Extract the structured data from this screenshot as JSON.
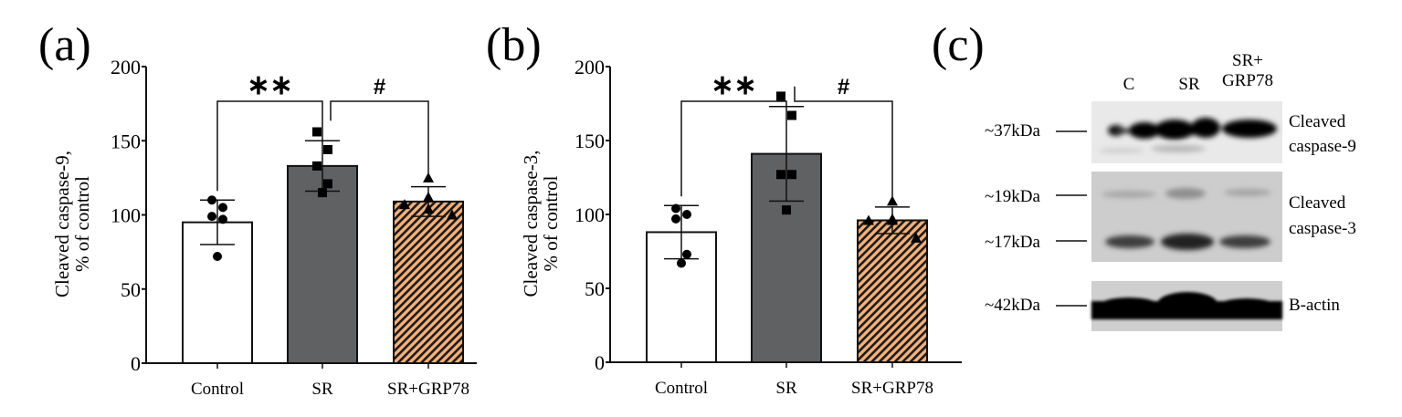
{
  "panels": {
    "a": {
      "letter": "(a)"
    },
    "b": {
      "letter": "(b)"
    },
    "c": {
      "letter": "(c)"
    }
  },
  "chart_data": [
    {
      "id": "a",
      "type": "bar",
      "title": "",
      "xlabel": "",
      "ylabel_line1": "Cleaved caspase-9,",
      "ylabel_line2": "% of control",
      "ylim": [
        0,
        200
      ],
      "yticks": [
        0,
        50,
        100,
        150,
        200
      ],
      "grid": false,
      "categories": [
        "Control",
        "SR",
        "SR+GRP78"
      ],
      "values": [
        95,
        133,
        109
      ],
      "errors": [
        15,
        17,
        10
      ],
      "points": [
        [
          110,
          105,
          99,
          97,
          72
        ],
        [
          156,
          144,
          133,
          121,
          115
        ],
        [
          125,
          112,
          107,
          104,
          100
        ]
      ],
      "markers": [
        "circle",
        "square",
        "triangle"
      ],
      "fills": [
        "#ffffff",
        "#5f6163",
        "#f4b07a"
      ],
      "significance": [
        {
          "from": 0,
          "to": 1,
          "label": "**"
        },
        {
          "from": 1,
          "to": 2,
          "label": "#"
        }
      ]
    },
    {
      "id": "b",
      "type": "bar",
      "title": "",
      "xlabel": "",
      "ylabel_line1": "Cleaved caspase-3,",
      "ylabel_line2": "% of control",
      "ylim": [
        0,
        200
      ],
      "yticks": [
        0,
        50,
        100,
        150,
        200
      ],
      "grid": false,
      "categories": [
        "Control",
        "SR",
        "SR+GRP78"
      ],
      "values": [
        88,
        141,
        96
      ],
      "errors": [
        18,
        32,
        9
      ],
      "points": [
        [
          104,
          100,
          97,
          73,
          67
        ],
        [
          180,
          167,
          127,
          127,
          103
        ],
        [
          109,
          97,
          96,
          96,
          84
        ]
      ],
      "markers": [
        "circle",
        "square",
        "triangle"
      ],
      "fills": [
        "#ffffff",
        "#5f6163",
        "#f4b07a"
      ],
      "significance": [
        {
          "from": 0,
          "to": 1,
          "label": "**"
        },
        {
          "from": 1,
          "to": 2,
          "label": "#"
        }
      ]
    }
  ],
  "blot": {
    "lanes": [
      "C",
      "SR",
      "SR+\nGRP78"
    ],
    "lane_line1": [
      "C",
      "SR",
      "SR+"
    ],
    "lane_line2": [
      "",
      "",
      "GRP78"
    ],
    "bands": [
      {
        "marker": "~37kDa",
        "label_line1": "Cleaved",
        "label_line2": "caspase-9",
        "intensity": [
          0.7,
          1.0,
          0.85
        ]
      },
      {
        "marker": "~19kDa",
        "marker2": "~17kDa",
        "label_line1": "Cleaved",
        "label_line2": "caspase-3",
        "intensity": [
          0.6,
          0.8,
          0.55
        ]
      },
      {
        "marker": "~42kDa",
        "label_line1": "B-actin",
        "label_line2": "",
        "intensity": [
          1.0,
          1.0,
          1.0
        ]
      }
    ]
  }
}
